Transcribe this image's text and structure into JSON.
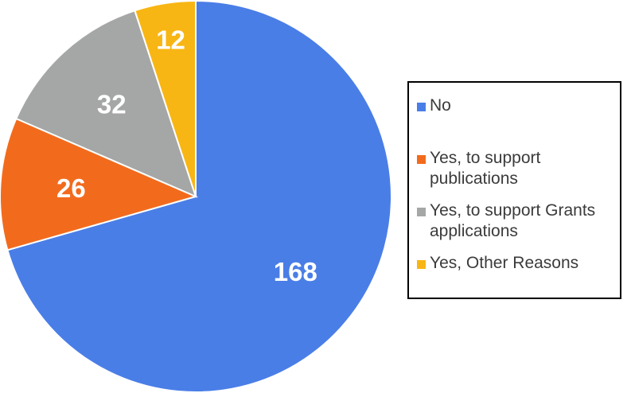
{
  "chart_data": {
    "type": "pie",
    "slices": [
      {
        "label": "No",
        "value": 168,
        "color": "#4a7ee7"
      },
      {
        "label": "Yes, to support publications",
        "value": 26,
        "color": "#f26b1d"
      },
      {
        "label": "Yes, to support Grants applications",
        "value": 32,
        "color": "#a5a7a6"
      },
      {
        "label": "Yes, Other Reasons",
        "value": 12,
        "color": "#f8b614"
      }
    ],
    "legend_position": "right"
  }
}
